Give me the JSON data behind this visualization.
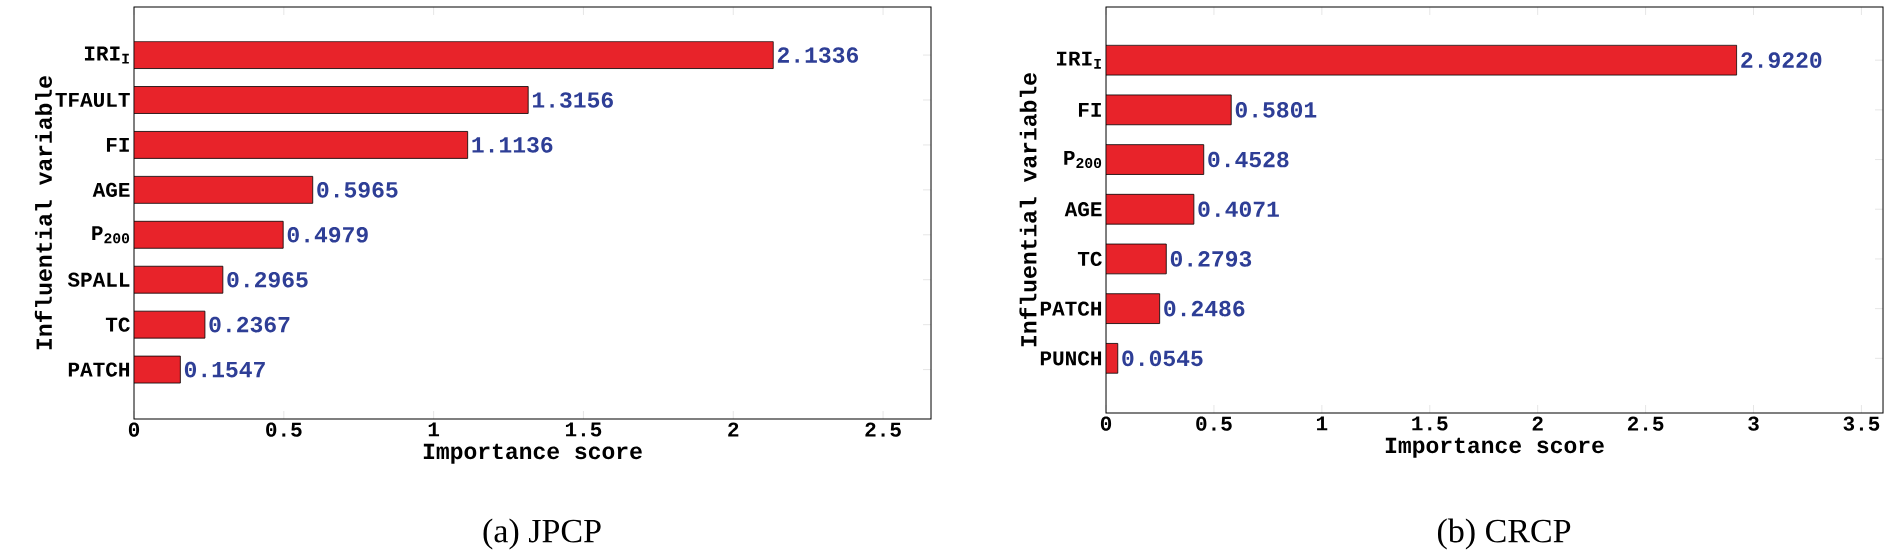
{
  "chart_data": [
    {
      "type": "bar",
      "orientation": "horizontal",
      "title": "(a) JPCP",
      "xlabel": "Importance score",
      "ylabel": "Influential variable",
      "categories": [
        "IRI$_{I}$",
        "TFAULT",
        "FI",
        "AGE",
        "P$_{200}$",
        "SPALL",
        "TC",
        "PATCH"
      ],
      "values": [
        2.1336,
        1.3156,
        1.1136,
        0.5965,
        0.4979,
        0.2965,
        0.2367,
        0.1547
      ],
      "value_labels": [
        "2.1336",
        "1.3156",
        "1.1136",
        "0.5965",
        "0.4979",
        "0.2965",
        "0.2367",
        "0.1547"
      ],
      "color": "#e8232a",
      "xlim": [
        0,
        2.66
      ],
      "xticks": [
        0,
        0.5,
        1,
        1.5,
        2,
        2.5
      ]
    },
    {
      "type": "bar",
      "orientation": "horizontal",
      "title": "(b) CRCP",
      "xlabel": "Importance score",
      "ylabel": "Influential variable",
      "categories": [
        "IRI$_{I}$",
        "FI",
        "P$_{200}$",
        "AGE",
        "TC",
        "PATCH",
        "PUNCH"
      ],
      "values": [
        2.922,
        0.5801,
        0.4528,
        0.4071,
        0.2793,
        0.2486,
        0.0545
      ],
      "value_labels": [
        "2.9220",
        "0.5801",
        "0.4528",
        "0.4071",
        "0.2793",
        "0.2486",
        "0.0545"
      ],
      "color": "#e8232a",
      "xlim": [
        0,
        3.6
      ],
      "xticks": [
        0,
        0.5,
        1,
        1.5,
        2,
        2.5,
        3,
        3.5
      ]
    }
  ]
}
